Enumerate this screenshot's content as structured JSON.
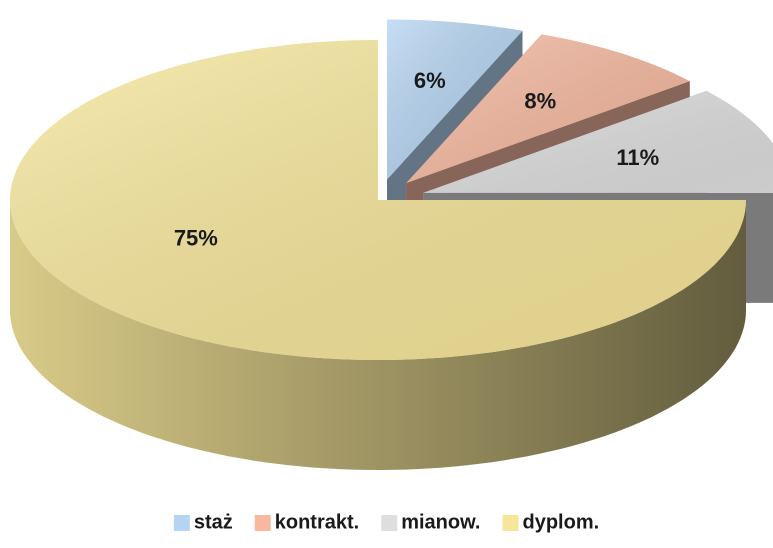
{
  "chart_data": {
    "type": "pie",
    "categories": [
      "staż",
      "kontrakt.",
      "mianow.",
      "dyplom."
    ],
    "values": [
      6,
      8,
      11,
      75
    ],
    "value_labels": [
      "6%",
      "8%",
      "11%",
      "75%"
    ],
    "colors": [
      "#b4d4f2",
      "#f6b9a0",
      "#dedede",
      "#f6e69a"
    ],
    "legend": "bottom"
  }
}
